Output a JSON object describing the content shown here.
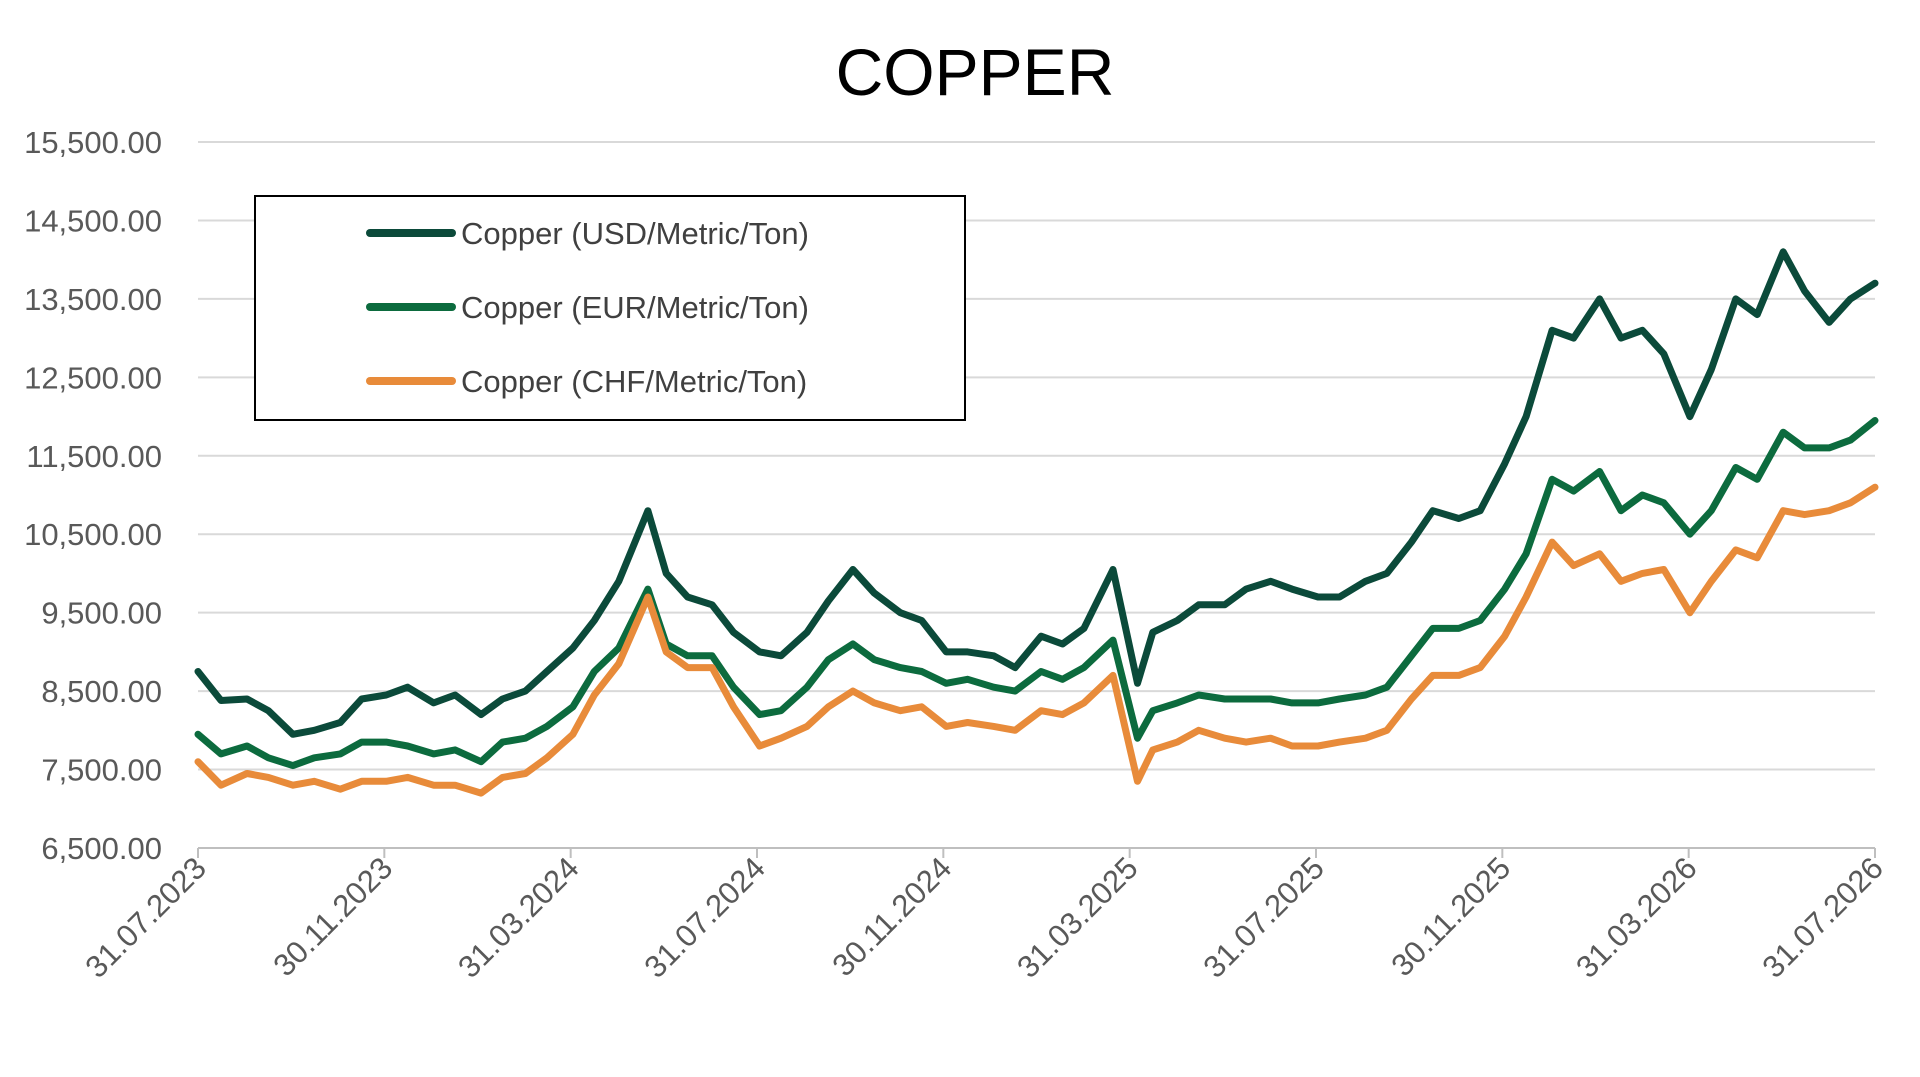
{
  "chart_data": {
    "type": "line",
    "title": "COPPER",
    "xlabel": "",
    "ylabel": "",
    "ylim": [
      6500,
      15500
    ],
    "yticks": [
      "6,500.00",
      "7,500.00",
      "8,500.00",
      "9,500.00",
      "10,500.00",
      "11,500.00",
      "12,500.00",
      "13,500.00",
      "14,500.00",
      "15,500.00"
    ],
    "xlim": [
      "2023-07-31",
      "2026-07-31"
    ],
    "xticks": [
      "31.07.2023",
      "30.11.2023",
      "31.03.2024",
      "31.07.2024",
      "30.11.2024",
      "31.03.2025",
      "31.07.2025",
      "30.11.2025",
      "31.03.2026",
      "31.07.2026"
    ],
    "grid": "horizontal",
    "legend_position": "top-left",
    "x": [
      "2023-07-31",
      "2023-08-15",
      "2023-09-01",
      "2023-09-15",
      "2023-10-01",
      "2023-10-15",
      "2023-11-01",
      "2023-11-15",
      "2023-12-01",
      "2023-12-15",
      "2024-01-01",
      "2024-01-15",
      "2024-02-01",
      "2024-02-15",
      "2024-03-01",
      "2024-03-15",
      "2024-04-01",
      "2024-04-15",
      "2024-05-01",
      "2024-05-20",
      "2024-06-01",
      "2024-06-15",
      "2024-07-01",
      "2024-07-15",
      "2024-08-01",
      "2024-08-15",
      "2024-09-01",
      "2024-09-15",
      "2024-10-01",
      "2024-10-15",
      "2024-11-01",
      "2024-11-15",
      "2024-12-01",
      "2024-12-15",
      "2025-01-01",
      "2025-01-15",
      "2025-02-01",
      "2025-02-15",
      "2025-03-01",
      "2025-03-20",
      "2025-04-05",
      "2025-04-15",
      "2025-05-01",
      "2025-05-15",
      "2025-06-01",
      "2025-06-15",
      "2025-07-01",
      "2025-07-15",
      "2025-08-01",
      "2025-08-15",
      "2025-09-01",
      "2025-09-15",
      "2025-10-01",
      "2025-10-15",
      "2025-11-01",
      "2025-11-15",
      "2025-12-01",
      "2025-12-15",
      "2026-01-01",
      "2026-01-15",
      "2026-02-01",
      "2026-02-15",
      "2026-03-01",
      "2026-03-15",
      "2026-04-01",
      "2026-04-15",
      "2026-05-01",
      "2026-05-15",
      "2026-06-01",
      "2026-06-15",
      "2026-07-01",
      "2026-07-15",
      "2026-07-31"
    ],
    "series": [
      {
        "name": "Copper (USD/Metric/Ton)",
        "color": "#0b4a3a",
        "values": [
          8750,
          8380,
          8400,
          8250,
          7950,
          8000,
          8100,
          8400,
          8450,
          8550,
          8350,
          8450,
          8200,
          8400,
          8500,
          8750,
          9050,
          9400,
          9900,
          10800,
          10000,
          9700,
          9600,
          9250,
          9000,
          8950,
          9250,
          9650,
          10050,
          9750,
          9500,
          9400,
          9000,
          9000,
          8950,
          8800,
          9200,
          9100,
          9300,
          10050,
          8600,
          9250,
          9400,
          9600,
          9600,
          9800,
          9900,
          9800,
          9700,
          9700,
          9900,
          10000,
          10400,
          10800,
          10700,
          10800,
          11400,
          12000,
          13100,
          13000,
          13500,
          13000,
          13100,
          12800,
          12000,
          12600,
          13500,
          13300,
          14100,
          13600,
          13200,
          13500,
          13700
        ]
      },
      {
        "name": "Copper (EUR/Metric/Ton)",
        "color": "#0c6b3e",
        "values": [
          7950,
          7700,
          7800,
          7650,
          7550,
          7650,
          7700,
          7850,
          7850,
          7800,
          7700,
          7750,
          7600,
          7850,
          7900,
          8050,
          8300,
          8750,
          9050,
          9800,
          9100,
          8950,
          8950,
          8550,
          8200,
          8250,
          8550,
          8900,
          9100,
          8900,
          8800,
          8750,
          8600,
          8650,
          8550,
          8500,
          8750,
          8650,
          8800,
          9150,
          7900,
          8250,
          8350,
          8450,
          8400,
          8400,
          8400,
          8350,
          8350,
          8400,
          8450,
          8550,
          8950,
          9300,
          9300,
          9400,
          9800,
          10250,
          11200,
          11050,
          11300,
          10800,
          11000,
          10900,
          10500,
          10800,
          11350,
          11200,
          11800,
          11600,
          11600,
          11700,
          11950
        ]
      },
      {
        "name": "Copper (CHF/Metric/Ton)",
        "color": "#e88b3a",
        "values": [
          7600,
          7300,
          7450,
          7400,
          7300,
          7350,
          7250,
          7350,
          7350,
          7400,
          7300,
          7300,
          7200,
          7400,
          7450,
          7650,
          7950,
          8450,
          8850,
          9700,
          9000,
          8800,
          8800,
          8300,
          7800,
          7900,
          8050,
          8300,
          8500,
          8350,
          8250,
          8300,
          8050,
          8100,
          8050,
          8000,
          8250,
          8200,
          8350,
          8700,
          7350,
          7750,
          7850,
          8000,
          7900,
          7850,
          7900,
          7800,
          7800,
          7850,
          7900,
          8000,
          8400,
          8700,
          8700,
          8800,
          9200,
          9700,
          10400,
          10100,
          10250,
          9900,
          10000,
          10050,
          9500,
          9900,
          10300,
          10200,
          10800,
          10750,
          10800,
          10900,
          11100
        ]
      }
    ]
  }
}
